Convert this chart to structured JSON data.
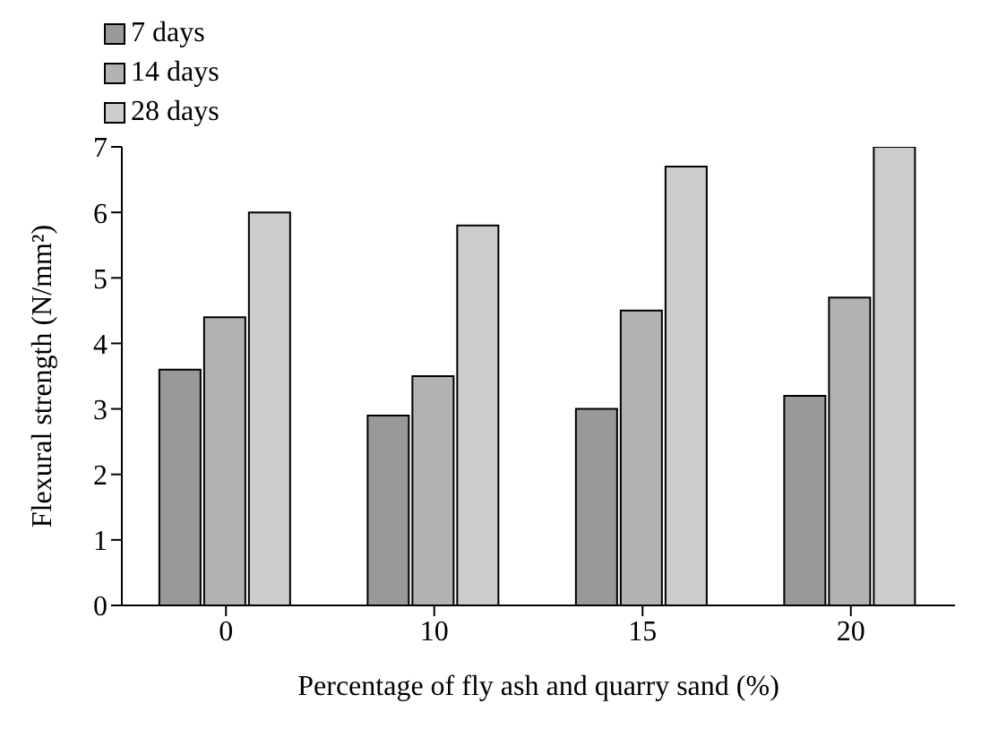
{
  "chart_data": {
    "type": "bar",
    "xlabel": "Percentage of fly ash and quarry sand (%)",
    "ylabel": "Flexural strength (N/mm²)",
    "categories": [
      "0",
      "10",
      "15",
      "20"
    ],
    "series": [
      {
        "name": "7 days",
        "color": "#999999",
        "values": [
          3.6,
          2.9,
          3.0,
          3.2
        ]
      },
      {
        "name": "14 days",
        "color": "#b2b2b2",
        "values": [
          4.4,
          3.5,
          4.5,
          4.7
        ]
      },
      {
        "name": "28 days",
        "color": "#cccccc",
        "values": [
          6.0,
          5.8,
          6.7,
          7.0
        ]
      }
    ],
    "ylim": [
      0,
      7
    ],
    "yticks": [
      0,
      1,
      2,
      3,
      4,
      5,
      6,
      7
    ],
    "grid": false,
    "legend": "top"
  }
}
